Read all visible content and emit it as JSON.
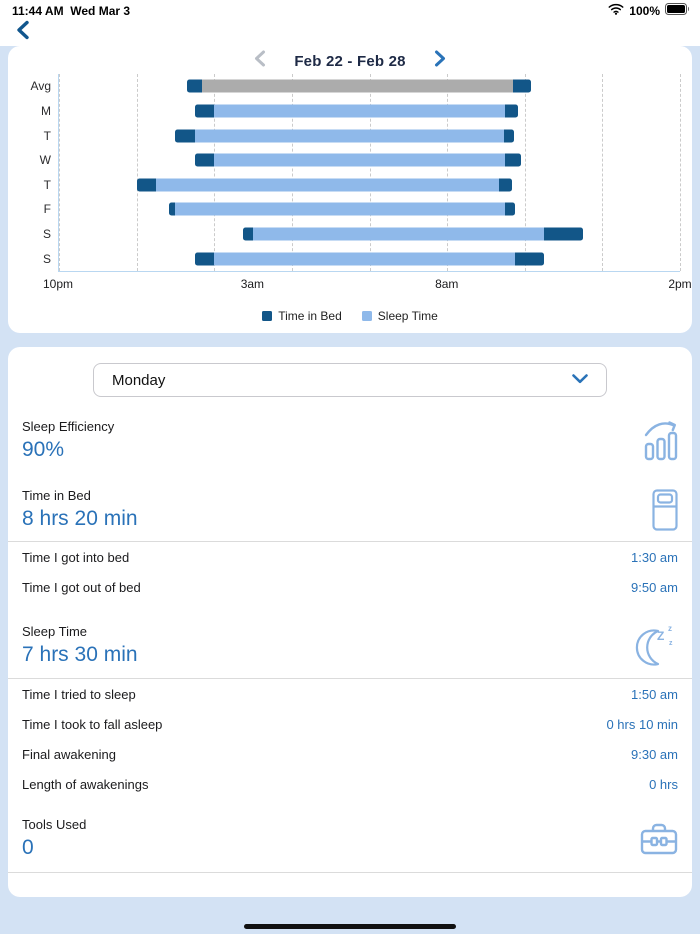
{
  "status_bar": {
    "time": "11:44 AM",
    "date": "Wed Mar 3",
    "battery_percent": "100%"
  },
  "nav": {
    "week_range": "Feb 22 - Feb 28"
  },
  "chart_data": {
    "type": "bar",
    "orientation": "horizontal",
    "title": "Weekly sleep chart: dark end caps = time in bed awake, middle bar = sleep time (gray for Avg row)",
    "axis": {
      "start_label": "10pm",
      "end_label": "2pm",
      "total_hours": 16,
      "gridline_every_hours": 2
    },
    "x_ticks": [
      {
        "label": "10pm",
        "hour": 0
      },
      {
        "label": "3am",
        "hour": 5
      },
      {
        "label": "8am",
        "hour": 10
      },
      {
        "label": "2pm",
        "hour": 16
      }
    ],
    "colors": {
      "time_in_bed": "#125688",
      "sleep_time": "#8fb9ea",
      "average_sleep": "#acacac"
    },
    "rows": [
      {
        "label": "Avg",
        "average": true,
        "hours": [
          3.29,
          3.68,
          11.7,
          12.17
        ]
      },
      {
        "label": "M",
        "average": false,
        "hours": [
          3.5,
          4.0,
          11.5,
          11.83
        ]
      },
      {
        "label": "T",
        "average": false,
        "hours": [
          3.0,
          3.5,
          11.47,
          11.73
        ]
      },
      {
        "label": "W",
        "average": false,
        "hours": [
          3.5,
          4.0,
          11.5,
          11.9
        ]
      },
      {
        "label": "T",
        "average": false,
        "hours": [
          2.0,
          2.5,
          11.33,
          11.67
        ]
      },
      {
        "label": "F",
        "average": false,
        "hours": [
          2.83,
          3.0,
          11.5,
          11.75
        ]
      },
      {
        "label": "S",
        "average": false,
        "hours": [
          4.75,
          5.0,
          12.5,
          13.5
        ]
      },
      {
        "label": "S",
        "average": false,
        "hours": [
          3.5,
          4.0,
          11.75,
          12.5
        ]
      }
    ],
    "legend": [
      {
        "label": "Time in Bed",
        "color": "#125688"
      },
      {
        "label": "Sleep Time",
        "color": "#8fb9ea"
      }
    ]
  },
  "day_selector": {
    "value": "Monday"
  },
  "sections": [
    {
      "label": "Sleep Efficiency",
      "value": "90%",
      "icon": "bar-chart-growth-icon",
      "rows": []
    },
    {
      "label": "Time in Bed",
      "value": "8 hrs 20 min",
      "icon": "bed-icon",
      "rows": [
        {
          "label": "Time I got into bed",
          "value": "1:30 am"
        },
        {
          "label": "Time I got out of bed",
          "value": "9:50 am"
        }
      ]
    },
    {
      "label": "Sleep Time",
      "value": "7 hrs 30 min",
      "icon": "moon-zzz-icon",
      "rows": [
        {
          "label": "Time I tried to sleep",
          "value": "1:50 am"
        },
        {
          "label": "Time I took to fall asleep",
          "value": "0 hrs 10 min"
        },
        {
          "label": "Final awakening",
          "value": "9:30 am"
        },
        {
          "label": "Length of awakenings",
          "value": "0 hrs"
        }
      ]
    },
    {
      "label": "Tools Used",
      "value": "0",
      "icon": "toolbox-icon",
      "rows": []
    }
  ]
}
